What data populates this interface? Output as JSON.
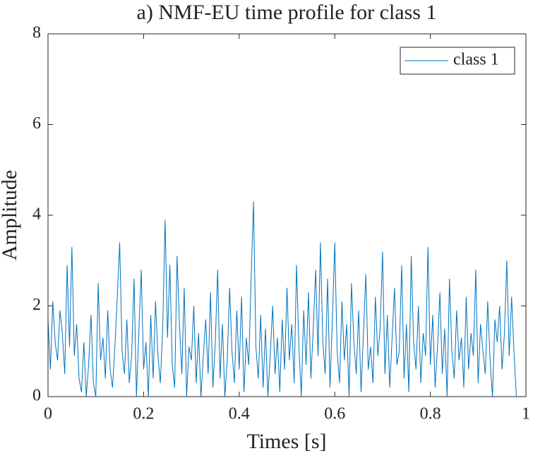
{
  "chart_data": {
    "type": "line",
    "title": "a) NMF-EU time profile for class 1",
    "xlabel": "Times [s]",
    "ylabel": "Amplitude",
    "xlim": [
      0,
      1
    ],
    "ylim": [
      0,
      8
    ],
    "xticks": [
      0,
      0.2,
      0.4,
      0.6,
      0.8,
      1
    ],
    "yticks": [
      0,
      2,
      4,
      6,
      8
    ],
    "grid": false,
    "legend": "upper right",
    "x": [
      0,
      0.005,
      0.01,
      0.015,
      0.02,
      0.025,
      0.03,
      0.035,
      0.04,
      0.045,
      0.05,
      0.055,
      0.06,
      0.065,
      0.07,
      0.075,
      0.08,
      0.085,
      0.09,
      0.095,
      0.1,
      0.105,
      0.11,
      0.115,
      0.12,
      0.125,
      0.13,
      0.135,
      0.14,
      0.145,
      0.15,
      0.155,
      0.16,
      0.165,
      0.17,
      0.175,
      0.18,
      0.185,
      0.19,
      0.195,
      0.2,
      0.205,
      0.21,
      0.215,
      0.22,
      0.225,
      0.23,
      0.235,
      0.24,
      0.245,
      0.25,
      0.255,
      0.26,
      0.265,
      0.27,
      0.275,
      0.28,
      0.285,
      0.29,
      0.295,
      0.3,
      0.305,
      0.31,
      0.315,
      0.32,
      0.325,
      0.33,
      0.335,
      0.34,
      0.345,
      0.35,
      0.355,
      0.36,
      0.365,
      0.37,
      0.375,
      0.38,
      0.385,
      0.39,
      0.395,
      0.4,
      0.405,
      0.41,
      0.415,
      0.42,
      0.425,
      0.43,
      0.435,
      0.44,
      0.445,
      0.45,
      0.455,
      0.46,
      0.465,
      0.47,
      0.475,
      0.48,
      0.485,
      0.49,
      0.495,
      0.5,
      0.505,
      0.51,
      0.515,
      0.52,
      0.525,
      0.53,
      0.535,
      0.54,
      0.545,
      0.55,
      0.555,
      0.56,
      0.565,
      0.57,
      0.575,
      0.58,
      0.585,
      0.59,
      0.595,
      0.6,
      0.605,
      0.61,
      0.615,
      0.62,
      0.625,
      0.63,
      0.635,
      0.64,
      0.645,
      0.65,
      0.655,
      0.66,
      0.665,
      0.67,
      0.675,
      0.68,
      0.685,
      0.69,
      0.695,
      0.7,
      0.705,
      0.71,
      0.715,
      0.72,
      0.725,
      0.73,
      0.735,
      0.74,
      0.745,
      0.75,
      0.755,
      0.76,
      0.765,
      0.77,
      0.775,
      0.78,
      0.785,
      0.79,
      0.795,
      0.8,
      0.805,
      0.81,
      0.815,
      0.82,
      0.825,
      0.83,
      0.835,
      0.84,
      0.845,
      0.85,
      0.855,
      0.86,
      0.865,
      0.87,
      0.875,
      0.88,
      0.885,
      0.89,
      0.895,
      0.9,
      0.905,
      0.91,
      0.915,
      0.92,
      0.925,
      0.93,
      0.935,
      0.94,
      0.945,
      0.95,
      0.955,
      0.96,
      0.965,
      0.97,
      0.975,
      0.98
    ],
    "series": [
      {
        "name": "class 1",
        "color": "#0072bd",
        "values": [
          1.7,
          0.6,
          2.1,
          1.2,
          0.8,
          1.9,
          1.4,
          0.5,
          2.9,
          1.1,
          3.3,
          0.9,
          1.6,
          0.4,
          0.1,
          1.2,
          0.0,
          0.7,
          1.8,
          0.3,
          0.0,
          2.5,
          0.8,
          1.3,
          0.4,
          1.9,
          0.6,
          0.2,
          1.1,
          2.2,
          3.4,
          1.0,
          0.5,
          1.7,
          0.3,
          0.9,
          2.6,
          0.0,
          1.4,
          2.8,
          0.6,
          1.2,
          0.0,
          1.8,
          0.4,
          2.1,
          0.9,
          0.3,
          1.5,
          3.9,
          1.3,
          2.9,
          0.7,
          0.2,
          3.1,
          1.6,
          0.5,
          2.4,
          0.0,
          1.1,
          0.8,
          2.0,
          0.3,
          1.4,
          0.0,
          0.9,
          1.7,
          0.5,
          2.3,
          0.2,
          1.2,
          2.8,
          0.4,
          1.6,
          0.0,
          0.8,
          2.4,
          1.0,
          0.3,
          1.9,
          0.6,
          2.2,
          0.1,
          1.3,
          0.7,
          2.6,
          4.3,
          1.1,
          0.4,
          1.8,
          0.2,
          1.5,
          0.0,
          0.9,
          2.0,
          0.5,
          1.3,
          0.1,
          1.7,
          0.6,
          2.4,
          0.8,
          1.6,
          0.3,
          2.9,
          1.1,
          0.0,
          1.9,
          0.7,
          2.3,
          0.4,
          1.5,
          2.8,
          0.9,
          3.4,
          1.2,
          0.5,
          2.6,
          0.2,
          1.7,
          3.4,
          1.0,
          0.3,
          2.1,
          0.8,
          1.6,
          0.0,
          2.5,
          1.2,
          0.5,
          1.9,
          0.1,
          1.4,
          2.7,
          0.6,
          1.1,
          0.3,
          2.2,
          0.9,
          1.5,
          3.2,
          0.5,
          1.8,
          0.2,
          1.3,
          2.4,
          0.7,
          1.0,
          2.9,
          0.4,
          1.6,
          0.1,
          3.1,
          1.2,
          0.6,
          2.0,
          0.3,
          1.4,
          0.9,
          3.3,
          0.7,
          1.8,
          0.2,
          1.1,
          2.3,
          0.5,
          1.5,
          0.0,
          2.6,
          1.0,
          0.4,
          1.9,
          0.8,
          1.3,
          0.2,
          2.2,
          0.6,
          1.4,
          0.9,
          2.8,
          0.3,
          1.6,
          1.0,
          0.5,
          2.1,
          0.8,
          0.0,
          1.7,
          1.2,
          2.0,
          0.6,
          1.4,
          3.0,
          0.9,
          2.2,
          1.0,
          0.0
        ]
      }
    ]
  }
}
